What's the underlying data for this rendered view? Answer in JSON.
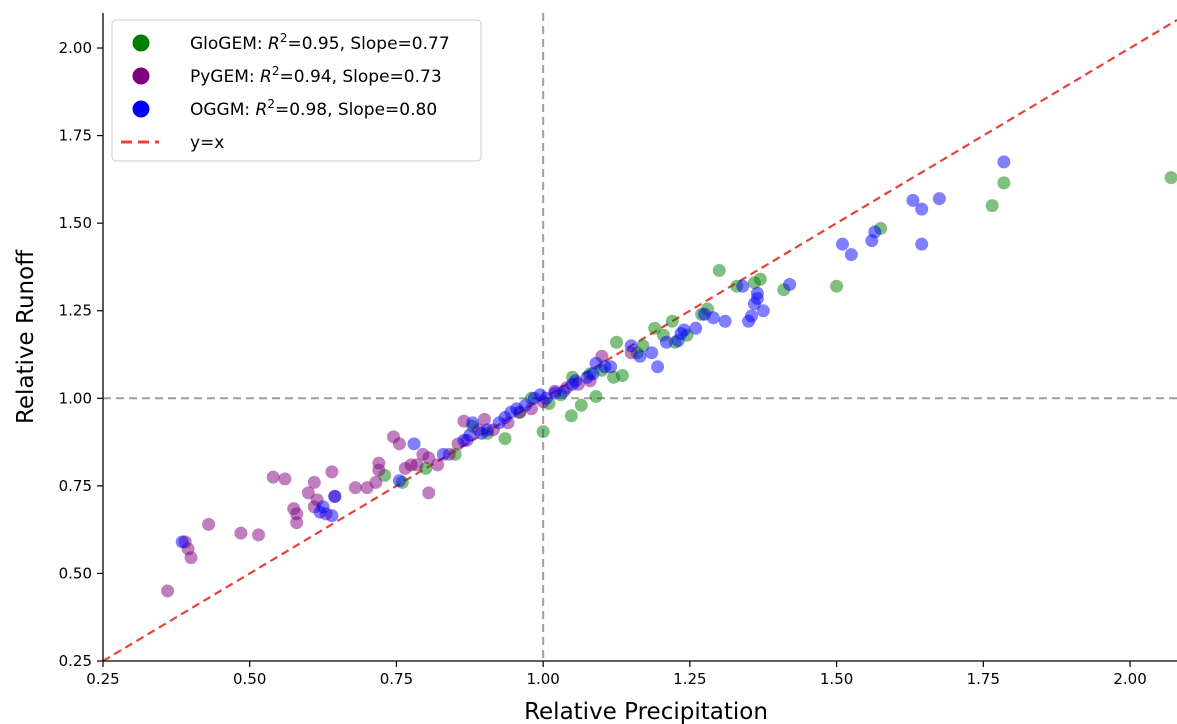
{
  "chart_data": {
    "type": "scatter",
    "xlabel": "Relative Precipitation",
    "ylabel": "Relative Runoff",
    "xlim": [
      0.25,
      2.08
    ],
    "ylim": [
      0.25,
      2.1
    ],
    "xticks": [
      "0.25",
      "0.50",
      "0.75",
      "1.00",
      "1.25",
      "1.50",
      "1.75",
      "2.00"
    ],
    "yticks": [
      "0.25",
      "0.50",
      "0.75",
      "1.00",
      "1.25",
      "1.50",
      "1.75",
      "2.00"
    ],
    "grid": false,
    "legend_position": "top-left",
    "reference_lines": [
      {
        "name": "y=x",
        "kind": "diagonal",
        "color": "#e8413a",
        "style": "dashed"
      },
      {
        "kind": "horizontal",
        "value": 1.0,
        "color": "#9e9e9e",
        "style": "dashed"
      },
      {
        "kind": "vertical",
        "value": 1.0,
        "color": "#9e9e9e",
        "style": "dashed"
      }
    ],
    "legend": [
      {
        "marker": "circle",
        "color": "#008000",
        "label_prefix": "GloGEM: ",
        "label_r": "R",
        "label_sup": "2",
        "label_suffix": "=0.95, Slope=0.77"
      },
      {
        "marker": "circle",
        "color": "#800080",
        "label_prefix": "PyGEM: ",
        "label_r": "R",
        "label_sup": "2",
        "label_suffix": "=0.94, Slope=0.73"
      },
      {
        "marker": "circle",
        "color": "#0000ff",
        "label_prefix": "OGGM: ",
        "label_r": "R",
        "label_sup": "2",
        "label_suffix": "=0.98, Slope=0.80"
      },
      {
        "marker": "dashed-line",
        "color": "#e8413a",
        "label_prefix": "y=x",
        "label_r": "",
        "label_sup": "",
        "label_suffix": ""
      }
    ],
    "series": [
      {
        "name": "GloGEM",
        "color": "#008000",
        "points": [
          [
            2.07,
            1.63
          ],
          [
            1.785,
            1.615
          ],
          [
            1.765,
            1.55
          ],
          [
            1.575,
            1.485
          ],
          [
            1.5,
            1.32
          ],
          [
            1.41,
            1.31
          ],
          [
            1.37,
            1.34
          ],
          [
            1.36,
            1.33
          ],
          [
            1.3,
            1.365
          ],
          [
            1.28,
            1.255
          ],
          [
            1.245,
            1.18
          ],
          [
            1.225,
            1.16
          ],
          [
            1.205,
            1.18
          ],
          [
            1.19,
            1.2
          ],
          [
            1.17,
            1.15
          ],
          [
            1.125,
            1.16
          ],
          [
            1.135,
            1.065
          ],
          [
            1.12,
            1.06
          ],
          [
            1.09,
            1.005
          ],
          [
            1.065,
            0.98
          ],
          [
            1.048,
            0.95
          ],
          [
            1.0,
            0.905
          ],
          [
            0.935,
            0.885
          ],
          [
            0.905,
            0.9
          ],
          [
            0.88,
            0.92
          ],
          [
            0.85,
            0.84
          ],
          [
            0.8,
            0.8
          ],
          [
            0.76,
            0.76
          ],
          [
            0.73,
            0.78
          ],
          [
            1.01,
            0.985
          ],
          [
            1.03,
            1.01
          ],
          [
            1.05,
            1.06
          ],
          [
            0.98,
            1.0
          ],
          [
            0.96,
            0.96
          ],
          [
            1.08,
            1.07
          ],
          [
            1.16,
            1.13
          ],
          [
            1.27,
            1.24
          ],
          [
            1.33,
            1.32
          ],
          [
            1.22,
            1.22
          ],
          [
            1.1,
            1.08
          ]
        ]
      },
      {
        "name": "PyGEM",
        "color": "#800080",
        "points": [
          [
            0.36,
            0.45
          ],
          [
            0.39,
            0.59
          ],
          [
            0.395,
            0.57
          ],
          [
            0.4,
            0.545
          ],
          [
            0.43,
            0.64
          ],
          [
            0.485,
            0.615
          ],
          [
            0.515,
            0.61
          ],
          [
            0.54,
            0.775
          ],
          [
            0.56,
            0.77
          ],
          [
            0.575,
            0.685
          ],
          [
            0.58,
            0.645
          ],
          [
            0.58,
            0.67
          ],
          [
            0.6,
            0.73
          ],
          [
            0.61,
            0.76
          ],
          [
            0.61,
            0.69
          ],
          [
            0.615,
            0.71
          ],
          [
            0.63,
            0.67
          ],
          [
            0.64,
            0.79
          ],
          [
            0.645,
            0.72
          ],
          [
            0.68,
            0.745
          ],
          [
            0.7,
            0.745
          ],
          [
            0.715,
            0.76
          ],
          [
            0.72,
            0.815
          ],
          [
            0.72,
            0.795
          ],
          [
            0.745,
            0.89
          ],
          [
            0.755,
            0.87
          ],
          [
            0.765,
            0.8
          ],
          [
            0.775,
            0.81
          ],
          [
            0.785,
            0.81
          ],
          [
            0.795,
            0.84
          ],
          [
            0.805,
            0.83
          ],
          [
            0.805,
            0.73
          ],
          [
            0.82,
            0.81
          ],
          [
            0.84,
            0.84
          ],
          [
            0.855,
            0.87
          ],
          [
            0.865,
            0.935
          ],
          [
            0.89,
            0.91
          ],
          [
            0.9,
            0.94
          ],
          [
            0.915,
            0.91
          ],
          [
            0.94,
            0.93
          ],
          [
            0.96,
            0.96
          ],
          [
            0.98,
            0.97
          ],
          [
            1.0,
            0.99
          ],
          [
            1.02,
            1.02
          ],
          [
            1.04,
            1.03
          ],
          [
            1.06,
            1.04
          ],
          [
            1.08,
            1.05
          ],
          [
            1.1,
            1.12
          ],
          [
            1.15,
            1.13
          ],
          [
            0.87,
            0.88
          ]
        ]
      },
      {
        "name": "OGGM",
        "color": "#0000ff",
        "points": [
          [
            0.385,
            0.59
          ],
          [
            0.62,
            0.675
          ],
          [
            0.625,
            0.69
          ],
          [
            0.64,
            0.665
          ],
          [
            0.645,
            0.72
          ],
          [
            0.755,
            0.765
          ],
          [
            0.78,
            0.87
          ],
          [
            0.83,
            0.84
          ],
          [
            0.865,
            0.88
          ],
          [
            0.875,
            0.895
          ],
          [
            0.88,
            0.93
          ],
          [
            0.895,
            0.9
          ],
          [
            0.905,
            0.91
          ],
          [
            0.925,
            0.93
          ],
          [
            0.935,
            0.945
          ],
          [
            0.945,
            0.96
          ],
          [
            0.955,
            0.97
          ],
          [
            0.97,
            0.98
          ],
          [
            0.985,
            1.0
          ],
          [
            0.995,
            1.01
          ],
          [
            1.005,
            1.0
          ],
          [
            1.02,
            1.015
          ],
          [
            1.035,
            1.02
          ],
          [
            1.05,
            1.04
          ],
          [
            1.055,
            1.05
          ],
          [
            1.075,
            1.06
          ],
          [
            1.085,
            1.07
          ],
          [
            1.09,
            1.1
          ],
          [
            1.105,
            1.09
          ],
          [
            1.115,
            1.09
          ],
          [
            1.15,
            1.15
          ],
          [
            1.165,
            1.12
          ],
          [
            1.185,
            1.13
          ],
          [
            1.195,
            1.09
          ],
          [
            1.21,
            1.16
          ],
          [
            1.23,
            1.165
          ],
          [
            1.235,
            1.185
          ],
          [
            1.24,
            1.195
          ],
          [
            1.26,
            1.2
          ],
          [
            1.275,
            1.24
          ],
          [
            1.29,
            1.23
          ],
          [
            1.31,
            1.22
          ],
          [
            1.34,
            1.32
          ],
          [
            1.35,
            1.22
          ],
          [
            1.355,
            1.235
          ],
          [
            1.36,
            1.27
          ],
          [
            1.365,
            1.285
          ],
          [
            1.365,
            1.3
          ],
          [
            1.375,
            1.25
          ],
          [
            1.42,
            1.325
          ],
          [
            1.51,
            1.44
          ],
          [
            1.525,
            1.41
          ],
          [
            1.56,
            1.45
          ],
          [
            1.565,
            1.475
          ],
          [
            1.63,
            1.565
          ],
          [
            1.645,
            1.54
          ],
          [
            1.645,
            1.44
          ],
          [
            1.675,
            1.57
          ],
          [
            1.785,
            1.675
          ]
        ]
      }
    ]
  }
}
